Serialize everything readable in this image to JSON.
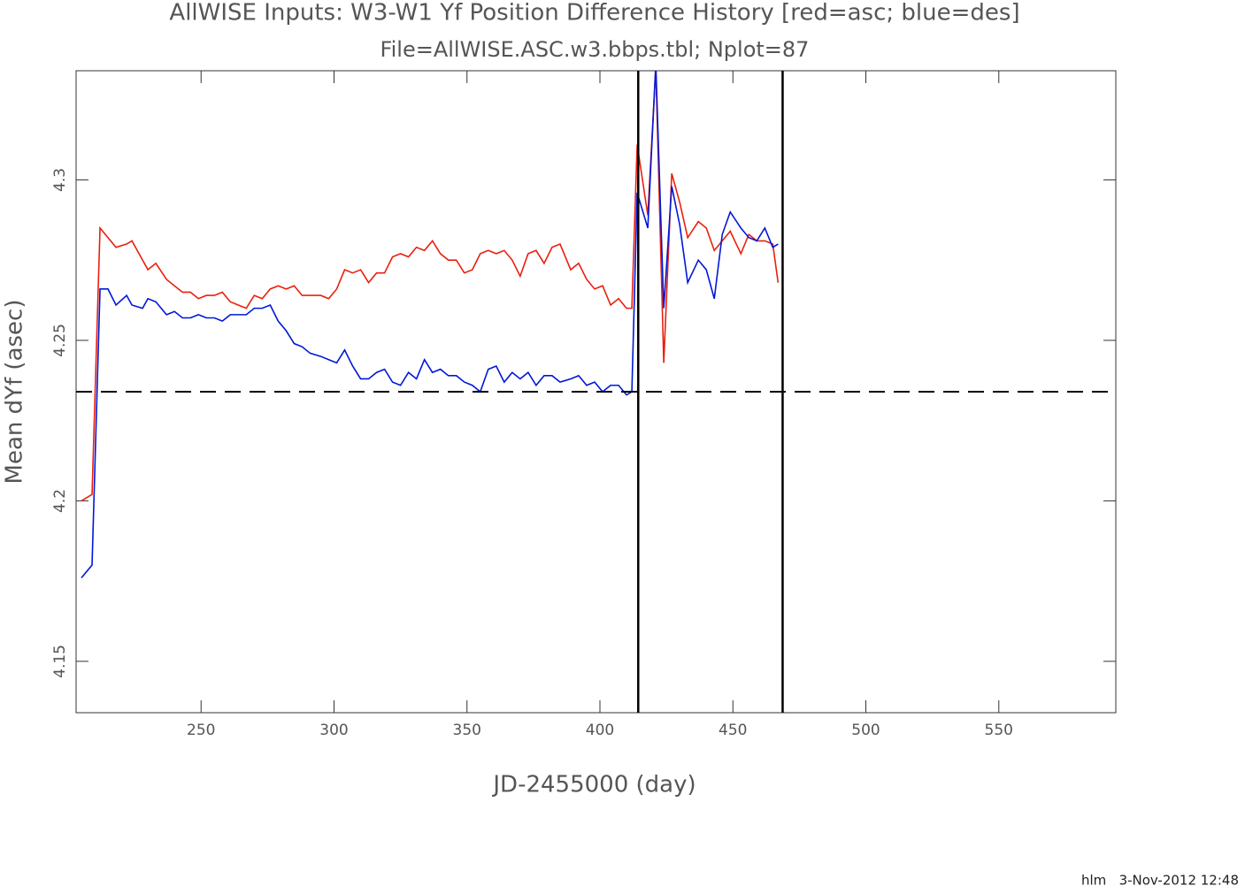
{
  "chart_data": {
    "type": "line",
    "title": "AllWISE Inputs: W3-W1 Yf Position Difference History [red=asc; blue=des]",
    "subtitle": "File=AllWISE.ASC.w3.bbps.tbl; Nplot=87",
    "x_label": "JD-2455000 (day)",
    "y_label": "Mean dYf (asec)",
    "x": [
      205,
      209,
      212,
      215,
      218,
      222,
      224,
      228,
      230,
      233,
      237,
      240,
      243,
      246,
      249,
      252,
      255,
      258,
      261,
      264,
      267,
      270,
      273,
      276,
      279,
      282,
      285,
      288,
      291,
      295,
      298,
      301,
      304,
      307,
      310,
      313,
      316,
      319,
      322,
      325,
      328,
      331,
      334,
      337,
      340,
      343,
      346,
      349,
      352,
      355,
      358,
      361,
      364,
      367,
      370,
      373,
      376,
      379,
      382,
      385,
      389,
      392,
      395,
      398,
      401,
      404,
      407,
      410,
      412,
      414,
      418,
      421,
      424,
      427,
      430,
      433,
      437,
      440,
      443,
      446,
      449,
      453,
      456,
      459,
      462,
      465,
      467
    ],
    "series": [
      {
        "name": "asc",
        "color": "#e8200e",
        "values": [
          4.2,
          4.202,
          4.285,
          4.282,
          4.279,
          4.28,
          4.281,
          4.275,
          4.272,
          4.274,
          4.269,
          4.267,
          4.265,
          4.265,
          4.263,
          4.264,
          4.264,
          4.265,
          4.262,
          4.261,
          4.26,
          4.264,
          4.263,
          4.266,
          4.267,
          4.266,
          4.267,
          4.264,
          4.264,
          4.264,
          4.263,
          4.266,
          4.272,
          4.271,
          4.272,
          4.268,
          4.271,
          4.271,
          4.276,
          4.277,
          4.276,
          4.279,
          4.278,
          4.281,
          4.277,
          4.275,
          4.275,
          4.271,
          4.272,
          4.277,
          4.278,
          4.277,
          4.278,
          4.275,
          4.27,
          4.277,
          4.278,
          4.274,
          4.279,
          4.28,
          4.272,
          4.274,
          4.269,
          4.266,
          4.267,
          4.261,
          4.263,
          4.26,
          4.26,
          4.311,
          4.289,
          4.335,
          4.243,
          4.302,
          4.293,
          4.282,
          4.287,
          4.285,
          4.278,
          4.281,
          4.284,
          4.277,
          4.283,
          4.281,
          4.281,
          4.28,
          4.268
        ]
      },
      {
        "name": "des",
        "color": "#0018d8",
        "values": [
          4.176,
          4.18,
          4.266,
          4.266,
          4.261,
          4.264,
          4.261,
          4.26,
          4.263,
          4.262,
          4.258,
          4.259,
          4.257,
          4.257,
          4.258,
          4.257,
          4.257,
          4.256,
          4.258,
          4.258,
          4.258,
          4.26,
          4.26,
          4.261,
          4.256,
          4.253,
          4.249,
          4.248,
          4.246,
          4.245,
          4.244,
          4.243,
          4.247,
          4.242,
          4.238,
          4.238,
          4.24,
          4.241,
          4.237,
          4.236,
          4.24,
          4.238,
          4.244,
          4.24,
          4.241,
          4.239,
          4.239,
          4.237,
          4.236,
          4.234,
          4.241,
          4.242,
          4.237,
          4.24,
          4.238,
          4.24,
          4.236,
          4.239,
          4.239,
          4.237,
          4.238,
          4.239,
          4.236,
          4.237,
          4.234,
          4.236,
          4.236,
          4.233,
          4.234,
          4.296,
          4.285,
          4.336,
          4.26,
          4.298,
          4.286,
          4.268,
          4.275,
          4.272,
          4.263,
          4.283,
          4.29,
          4.285,
          4.282,
          4.281,
          4.285,
          4.279,
          4.28
        ]
      }
    ],
    "xlim": [
      203,
      594
    ],
    "ylim": [
      4.134,
      4.334
    ],
    "xticks": [
      250,
      300,
      350,
      400,
      450,
      500,
      550
    ],
    "yticks": [
      4.15,
      4.2,
      4.25,
      4.3
    ],
    "hlines": [
      4.234
    ],
    "vlines": [
      414.4,
      468.7
    ]
  },
  "footer": "hlm   3-Nov-2012 12:48"
}
